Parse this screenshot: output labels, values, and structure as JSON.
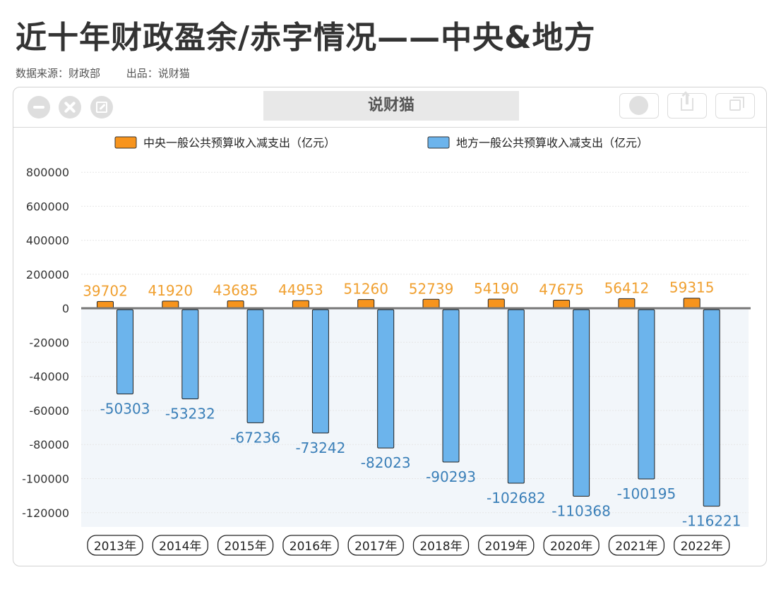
{
  "header": {
    "title": "近十年财政盈余/赤字情况——中央&地方",
    "source": "数据来源：财政部",
    "producer": "出品：说财猫"
  },
  "window": {
    "app_title": "说财猫",
    "controls": [
      "minimize-icon",
      "close-icon",
      "maximize-icon"
    ],
    "tools": [
      "record-icon",
      "share-icon",
      "copy-icon"
    ]
  },
  "colors": {
    "central": "#F7941D",
    "local": "#6CB4EC",
    "central_label": "#F0A030",
    "local_label": "#3A7FB8",
    "negative_bg": "#F2F6FA"
  },
  "chart_data": {
    "type": "bar",
    "categories": [
      "2013年",
      "2014年",
      "2015年",
      "2016年",
      "2017年",
      "2018年",
      "2019年",
      "2020年",
      "2021年",
      "2022年"
    ],
    "series": [
      {
        "name": "中央一般公共预算收入减支出（亿元）",
        "values": [
          39702,
          41920,
          43685,
          44953,
          51260,
          52739,
          54190,
          47675,
          56412,
          59315
        ]
      },
      {
        "name": "地方一般公共预算收入减支出（亿元）",
        "values": [
          -50303,
          -53232,
          -67236,
          -73242,
          -82023,
          -90293,
          -102682,
          -110368,
          -100195,
          -116221
        ]
      }
    ],
    "y_ticks": [
      "800000",
      "600000",
      "400000",
      "200000",
      "0",
      "-20000",
      "-40000",
      "-60000",
      "-80000",
      "-100000",
      "-120000"
    ],
    "y_scale_note": "broken axis: positive ticks at 200000 steps, negative ticks at 20000 steps",
    "legend_position": "top",
    "grid": true
  }
}
